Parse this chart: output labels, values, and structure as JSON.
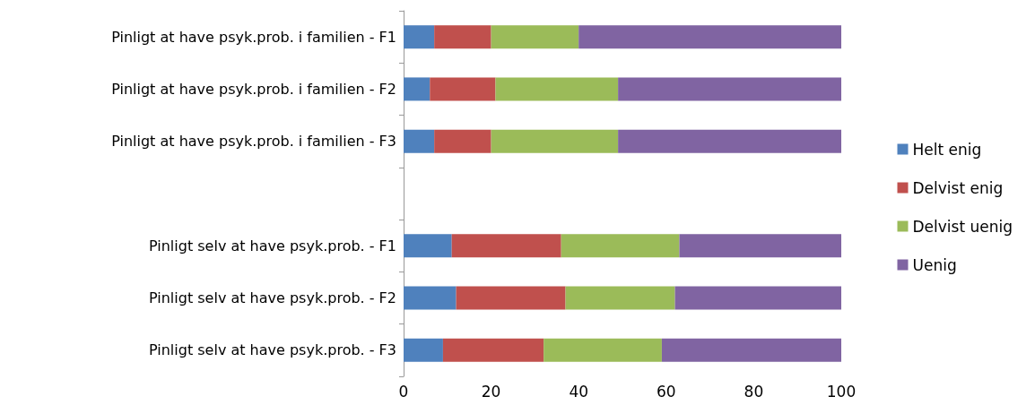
{
  "chart_data": {
    "type": "bar",
    "orientation": "horizontal",
    "stacked": true,
    "categories": [
      "Pinligt at have psyk.prob. i familien - F1",
      "Pinligt at have psyk.prob. i familien - F2",
      "Pinligt at have psyk.prob. i familien - F3",
      null,
      "Pinligt selv at have psyk.prob. - F1",
      "Pinligt selv at have psyk.prob. - F2",
      "Pinligt selv at have psyk.prob. - F3"
    ],
    "series": [
      {
        "name": "Helt enig",
        "color": "#4f81bd",
        "values": [
          7,
          6,
          7,
          null,
          11,
          12,
          9
        ]
      },
      {
        "name": "Delvist enig",
        "color": "#c0504d",
        "values": [
          13,
          15,
          13,
          null,
          25,
          25,
          23
        ]
      },
      {
        "name": "Delvist uenig",
        "color": "#9bbb59",
        "values": [
          20,
          28,
          29,
          null,
          27,
          25,
          27
        ]
      },
      {
        "name": "Uenig",
        "color": "#8064a2",
        "values": [
          60,
          51,
          51,
          null,
          37,
          38,
          41
        ]
      }
    ],
    "xlim": [
      0,
      100
    ],
    "xticks": [
      0,
      20,
      40,
      60,
      80,
      100
    ],
    "grid": false,
    "legend": "right"
  }
}
